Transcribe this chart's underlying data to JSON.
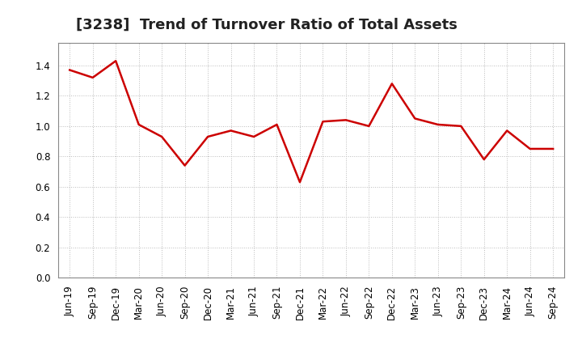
{
  "title": "[3238]  Trend of Turnover Ratio of Total Assets",
  "labels": [
    "Jun-19",
    "Sep-19",
    "Dec-19",
    "Mar-20",
    "Jun-20",
    "Sep-20",
    "Dec-20",
    "Mar-21",
    "Jun-21",
    "Sep-21",
    "Dec-21",
    "Mar-22",
    "Jun-22",
    "Sep-22",
    "Dec-22",
    "Mar-23",
    "Jun-23",
    "Sep-23",
    "Dec-23",
    "Mar-24",
    "Jun-24",
    "Sep-24"
  ],
  "values": [
    1.37,
    1.32,
    1.43,
    1.01,
    0.93,
    0.74,
    0.93,
    0.97,
    0.93,
    1.01,
    0.63,
    1.03,
    1.04,
    1.0,
    1.28,
    1.05,
    1.01,
    1.0,
    0.78,
    0.97,
    0.85,
    0.85
  ],
  "line_color": "#CC0000",
  "line_width": 1.8,
  "ylim": [
    0.0,
    1.55
  ],
  "yticks": [
    0.0,
    0.2,
    0.4,
    0.6,
    0.8,
    1.0,
    1.2,
    1.4
  ],
  "grid_color": "#bbbbbb",
  "bg_color": "#ffffff",
  "plot_bg_color": "#ffffff",
  "title_fontsize": 13,
  "tick_fontsize": 8.5
}
